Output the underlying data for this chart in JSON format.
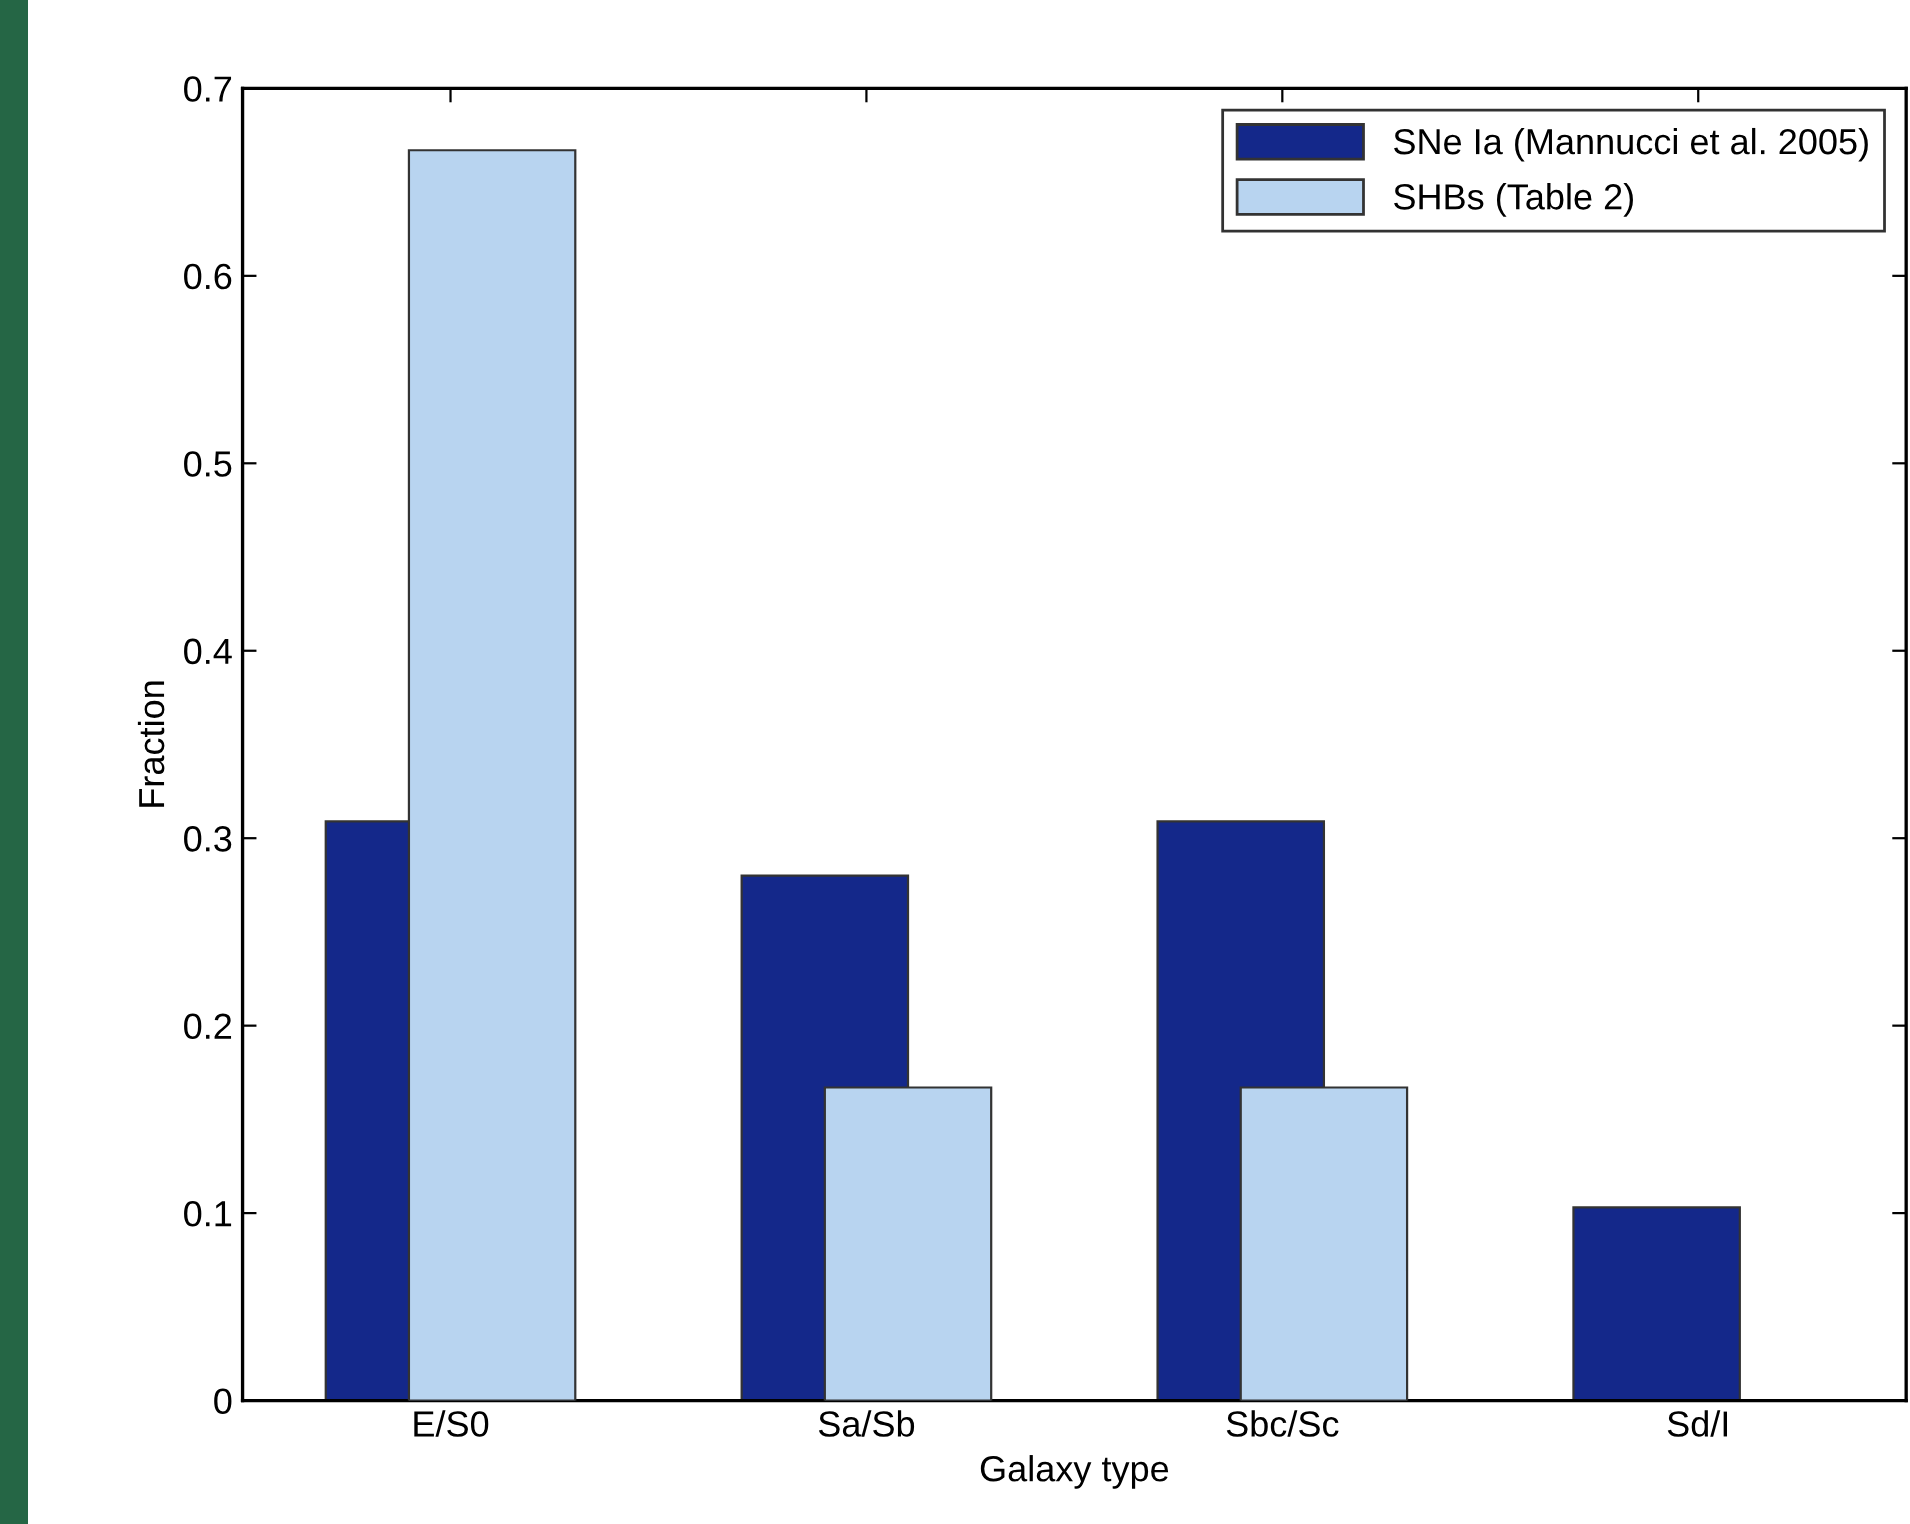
{
  "chart_data": {
    "type": "bar",
    "xlabel": "Galaxy type",
    "ylabel": "Fraction",
    "categories": [
      "E/S0",
      "Sa/Sb",
      "Sbc/Sc",
      "Sd/I"
    ],
    "series": [
      {
        "name": "SNe Ia (Mannucci et al. 2005)",
        "color": "#14288a",
        "values": [
          0.309,
          0.28,
          0.309,
          0.103
        ]
      },
      {
        "name": "SHBs (Table 2)",
        "color": "#b8d4f0",
        "values": [
          0.667,
          0.167,
          0.167,
          null
        ]
      }
    ],
    "ylim": [
      0,
      0.7
    ],
    "yticks": [
      0,
      0.1,
      0.2,
      0.3,
      0.4,
      0.5,
      0.6,
      0.7
    ],
    "grid": false,
    "legend": "top right"
  }
}
